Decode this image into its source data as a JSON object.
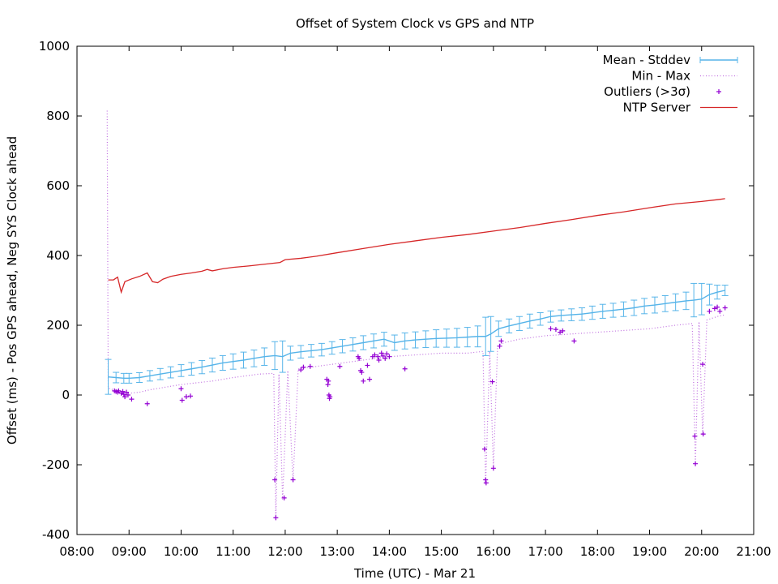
{
  "chart_data": {
    "type": "line",
    "title": "Offset of System Clock vs GPS and NTP",
    "xlabel": "Time (UTC) - Mar 21",
    "ylabel": "Offset (ms) - Pos GPS ahead, Neg SYS Clock ahead",
    "xlim": [
      8,
      21
    ],
    "ylim": [
      -400,
      1000
    ],
    "x_unit": "hours UTC",
    "x_ticks": [
      {
        "v": 8,
        "label": "08:00"
      },
      {
        "v": 9,
        "label": "09:00"
      },
      {
        "v": 10,
        "label": "10:00"
      },
      {
        "v": 11,
        "label": "11:00"
      },
      {
        "v": 12,
        "label": "12:00"
      },
      {
        "v": 13,
        "label": "13:00"
      },
      {
        "v": 14,
        "label": "14:00"
      },
      {
        "v": 15,
        "label": "15:00"
      },
      {
        "v": 16,
        "label": "16:00"
      },
      {
        "v": 17,
        "label": "17:00"
      },
      {
        "v": 18,
        "label": "18:00"
      },
      {
        "v": 19,
        "label": "19:00"
      },
      {
        "v": 20,
        "label": "20:00"
      },
      {
        "v": 21,
        "label": "21:00"
      }
    ],
    "y_ticks": [
      {
        "v": 1000,
        "label": "1000"
      },
      {
        "v": 800,
        "label": "800"
      },
      {
        "v": 600,
        "label": "600"
      },
      {
        "v": 400,
        "label": "400"
      },
      {
        "v": 200,
        "label": "200"
      },
      {
        "v": 0,
        "label": "0"
      },
      {
        "v": -200,
        "label": "-200"
      },
      {
        "v": -400,
        "label": "-400"
      }
    ],
    "grid": false,
    "legend_position": "top-right",
    "series": [
      {
        "name": "Mean - Stddev",
        "style": "errorbars",
        "color": "#56b4e9",
        "points": [
          [
            8.6,
            52,
            50
          ],
          [
            8.75,
            50,
            15
          ],
          [
            8.9,
            48,
            14
          ],
          [
            9.0,
            48,
            14
          ],
          [
            9.2,
            50,
            14
          ],
          [
            9.4,
            55,
            15
          ],
          [
            9.6,
            60,
            16
          ],
          [
            9.8,
            65,
            16
          ],
          [
            10.0,
            70,
            17
          ],
          [
            10.2,
            75,
            18
          ],
          [
            10.4,
            80,
            19
          ],
          [
            10.6,
            86,
            20
          ],
          [
            10.8,
            92,
            21
          ],
          [
            11.0,
            96,
            22
          ],
          [
            11.2,
            100,
            23
          ],
          [
            11.4,
            105,
            24
          ],
          [
            11.6,
            110,
            25
          ],
          [
            11.8,
            113,
            40
          ],
          [
            11.95,
            110,
            45
          ],
          [
            12.1,
            120,
            20
          ],
          [
            12.3,
            124,
            18
          ],
          [
            12.5,
            127,
            18
          ],
          [
            12.7,
            130,
            18
          ],
          [
            12.9,
            135,
            18
          ],
          [
            13.1,
            140,
            19
          ],
          [
            13.3,
            145,
            19
          ],
          [
            13.5,
            150,
            20
          ],
          [
            13.7,
            155,
            20
          ],
          [
            13.9,
            160,
            20
          ],
          [
            14.1,
            150,
            22
          ],
          [
            14.3,
            155,
            23
          ],
          [
            14.5,
            158,
            23
          ],
          [
            14.7,
            160,
            24
          ],
          [
            14.9,
            162,
            25
          ],
          [
            15.1,
            163,
            26
          ],
          [
            15.3,
            164,
            27
          ],
          [
            15.5,
            166,
            28
          ],
          [
            15.7,
            168,
            30
          ],
          [
            15.85,
            168,
            55
          ],
          [
            15.95,
            175,
            50
          ],
          [
            16.1,
            190,
            22
          ],
          [
            16.3,
            198,
            20
          ],
          [
            16.5,
            205,
            20
          ],
          [
            16.7,
            212,
            20
          ],
          [
            16.9,
            218,
            18
          ],
          [
            17.1,
            225,
            16
          ],
          [
            17.3,
            228,
            16
          ],
          [
            17.5,
            230,
            17
          ],
          [
            17.7,
            232,
            18
          ],
          [
            17.9,
            236,
            19
          ],
          [
            18.1,
            240,
            20
          ],
          [
            18.3,
            243,
            20
          ],
          [
            18.5,
            246,
            21
          ],
          [
            18.7,
            250,
            22
          ],
          [
            18.9,
            255,
            22
          ],
          [
            19.1,
            258,
            23
          ],
          [
            19.3,
            262,
            23
          ],
          [
            19.5,
            266,
            24
          ],
          [
            19.7,
            270,
            25
          ],
          [
            19.85,
            272,
            48
          ],
          [
            20.0,
            275,
            45
          ],
          [
            20.15,
            288,
            30
          ],
          [
            20.3,
            295,
            20
          ],
          [
            20.45,
            300,
            15
          ]
        ]
      },
      {
        "name": "Min - Max",
        "style": "dotted",
        "color": "#c070e0",
        "points": [
          [
            8.58,
            815
          ],
          [
            8.6,
            20
          ],
          [
            8.7,
            15
          ],
          [
            8.8,
            10
          ],
          [
            9.0,
            5
          ],
          [
            9.2,
            8
          ],
          [
            9.4,
            15
          ],
          [
            9.6,
            20
          ],
          [
            9.8,
            25
          ],
          [
            10.0,
            30
          ],
          [
            10.3,
            35
          ],
          [
            10.6,
            40
          ],
          [
            11.0,
            50
          ],
          [
            11.5,
            60
          ],
          [
            11.78,
            62
          ],
          [
            11.82,
            -350
          ],
          [
            11.88,
            60
          ],
          [
            11.95,
            -300
          ],
          [
            12.05,
            70
          ],
          [
            12.15,
            -250
          ],
          [
            12.25,
            75
          ],
          [
            12.5,
            80
          ],
          [
            13.0,
            90
          ],
          [
            13.5,
            100
          ],
          [
            14.0,
            110
          ],
          [
            14.5,
            115
          ],
          [
            15.0,
            120
          ],
          [
            15.5,
            120
          ],
          [
            15.8,
            125
          ],
          [
            15.85,
            -255
          ],
          [
            15.93,
            125
          ],
          [
            16.0,
            -210
          ],
          [
            16.08,
            140
          ],
          [
            16.2,
            150
          ],
          [
            16.5,
            160
          ],
          [
            17.0,
            170
          ],
          [
            17.5,
            175
          ],
          [
            18.0,
            180
          ],
          [
            18.5,
            185
          ],
          [
            19.0,
            190
          ],
          [
            19.5,
            200
          ],
          [
            19.82,
            205
          ],
          [
            19.88,
            -200
          ],
          [
            19.95,
            210
          ],
          [
            20.02,
            -115
          ],
          [
            20.1,
            215
          ],
          [
            20.3,
            225
          ],
          [
            20.45,
            230
          ]
        ]
      },
      {
        "name": "Outliers (>3σ)",
        "style": "points",
        "color": "#9400d3",
        "points": [
          [
            8.72,
            12
          ],
          [
            8.75,
            10
          ],
          [
            8.78,
            8
          ],
          [
            8.8,
            12
          ],
          [
            8.85,
            5
          ],
          [
            8.88,
            10
          ],
          [
            8.9,
            2
          ],
          [
            8.92,
            -5
          ],
          [
            8.95,
            8
          ],
          [
            8.98,
            0
          ],
          [
            9.05,
            -12
          ],
          [
            9.35,
            -25
          ],
          [
            10.0,
            18
          ],
          [
            10.02,
            -15
          ],
          [
            10.1,
            -5
          ],
          [
            10.18,
            -3
          ],
          [
            11.8,
            -243
          ],
          [
            11.82,
            -352
          ],
          [
            11.98,
            -295
          ],
          [
            12.15,
            -243
          ],
          [
            12.3,
            72
          ],
          [
            12.35,
            80
          ],
          [
            12.48,
            82
          ],
          [
            12.8,
            45
          ],
          [
            12.82,
            30
          ],
          [
            12.83,
            40
          ],
          [
            12.84,
            0
          ],
          [
            12.85,
            -10
          ],
          [
            12.86,
            -5
          ],
          [
            13.05,
            82
          ],
          [
            13.4,
            110
          ],
          [
            13.42,
            105
          ],
          [
            13.45,
            70
          ],
          [
            13.47,
            65
          ],
          [
            13.5,
            40
          ],
          [
            13.58,
            85
          ],
          [
            13.62,
            45
          ],
          [
            13.68,
            110
          ],
          [
            13.72,
            115
          ],
          [
            13.78,
            110
          ],
          [
            13.8,
            100
          ],
          [
            13.85,
            120
          ],
          [
            13.88,
            112
          ],
          [
            13.92,
            105
          ],
          [
            13.95,
            118
          ],
          [
            14.0,
            110
          ],
          [
            14.3,
            75
          ],
          [
            15.83,
            -155
          ],
          [
            15.85,
            -243
          ],
          [
            15.86,
            -252
          ],
          [
            15.98,
            38
          ],
          [
            16.0,
            -210
          ],
          [
            16.12,
            140
          ],
          [
            16.15,
            155
          ],
          [
            17.1,
            190
          ],
          [
            17.2,
            188
          ],
          [
            17.28,
            180
          ],
          [
            17.33,
            184
          ],
          [
            17.55,
            155
          ],
          [
            19.87,
            -118
          ],
          [
            19.88,
            -197
          ],
          [
            20.02,
            88
          ],
          [
            20.03,
            -112
          ],
          [
            20.15,
            240
          ],
          [
            20.25,
            248
          ],
          [
            20.3,
            252
          ],
          [
            20.35,
            240
          ],
          [
            20.45,
            250
          ]
        ]
      },
      {
        "name": "NTP Server",
        "style": "line",
        "color": "#d62728",
        "points": [
          [
            8.6,
            330
          ],
          [
            8.7,
            330
          ],
          [
            8.78,
            338
          ],
          [
            8.85,
            295
          ],
          [
            8.92,
            325
          ],
          [
            9.05,
            333
          ],
          [
            9.2,
            340
          ],
          [
            9.35,
            350
          ],
          [
            9.45,
            325
          ],
          [
            9.55,
            322
          ],
          [
            9.65,
            332
          ],
          [
            9.8,
            340
          ],
          [
            10.0,
            346
          ],
          [
            10.2,
            350
          ],
          [
            10.4,
            355
          ],
          [
            10.5,
            360
          ],
          [
            10.6,
            356
          ],
          [
            10.8,
            362
          ],
          [
            11.0,
            366
          ],
          [
            11.3,
            370
          ],
          [
            11.6,
            375
          ],
          [
            11.9,
            380
          ],
          [
            12.0,
            388
          ],
          [
            12.3,
            392
          ],
          [
            12.6,
            398
          ],
          [
            13.0,
            408
          ],
          [
            13.5,
            420
          ],
          [
            14.0,
            432
          ],
          [
            14.5,
            442
          ],
          [
            15.0,
            452
          ],
          [
            15.5,
            460
          ],
          [
            16.0,
            470
          ],
          [
            16.5,
            480
          ],
          [
            17.0,
            492
          ],
          [
            17.5,
            503
          ],
          [
            18.0,
            515
          ],
          [
            18.5,
            525
          ],
          [
            19.0,
            537
          ],
          [
            19.5,
            548
          ],
          [
            20.0,
            555
          ],
          [
            20.3,
            560
          ],
          [
            20.45,
            563
          ]
        ]
      }
    ]
  }
}
